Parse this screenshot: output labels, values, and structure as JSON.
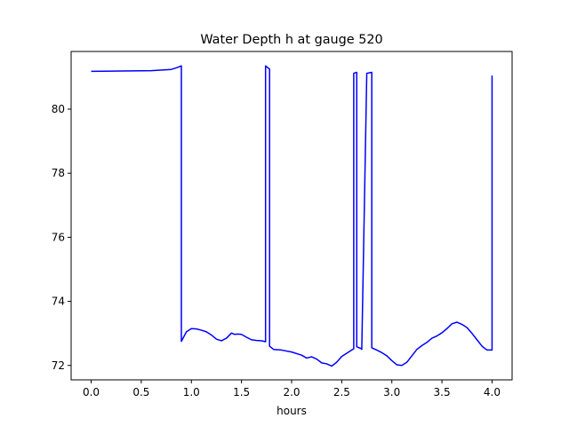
{
  "chart_data": {
    "type": "line",
    "title": "Water Depth h at gauge 520",
    "xlabel": "hours",
    "ylabel": "",
    "xlim": [
      -0.2,
      4.2
    ],
    "ylim": [
      71.55,
      81.8
    ],
    "xticks": [
      0.0,
      0.5,
      1.0,
      1.5,
      2.0,
      2.5,
      3.0,
      3.5,
      4.0
    ],
    "xtick_labels": [
      "0.0",
      "0.5",
      "1.0",
      "1.5",
      "2.0",
      "2.5",
      "3.0",
      "3.5",
      "4.0"
    ],
    "yticks": [
      72,
      74,
      76,
      78,
      80
    ],
    "ytick_labels": [
      "72",
      "74",
      "76",
      "78",
      "80"
    ],
    "grid": false,
    "series": [
      {
        "color": "#0000ff",
        "x": [
          0.0,
          0.3,
          0.6,
          0.8,
          0.86,
          0.9,
          0.9,
          0.95,
          1.0,
          1.05,
          1.1,
          1.15,
          1.2,
          1.25,
          1.3,
          1.35,
          1.4,
          1.43,
          1.46,
          1.5,
          1.55,
          1.6,
          1.65,
          1.7,
          1.74,
          1.74,
          1.78,
          1.78,
          1.82,
          1.9,
          2.0,
          2.1,
          2.15,
          2.2,
          2.25,
          2.3,
          2.35,
          2.4,
          2.45,
          2.5,
          2.55,
          2.6,
          2.62,
          2.62,
          2.65,
          2.65,
          2.7,
          2.7,
          2.75,
          2.75,
          2.8,
          2.8,
          2.85,
          2.9,
          2.95,
          3.0,
          3.05,
          3.1,
          3.15,
          3.2,
          3.25,
          3.3,
          3.35,
          3.4,
          3.45,
          3.5,
          3.55,
          3.6,
          3.65,
          3.7,
          3.75,
          3.8,
          3.85,
          3.9,
          3.95,
          4.0,
          4.0
        ],
        "y": [
          81.18,
          81.19,
          81.2,
          81.24,
          81.3,
          81.35,
          72.75,
          73.05,
          73.15,
          73.14,
          73.1,
          73.05,
          72.95,
          72.82,
          72.77,
          72.85,
          73.01,
          72.97,
          72.98,
          72.97,
          72.88,
          72.8,
          72.78,
          72.77,
          72.74,
          81.35,
          81.25,
          72.6,
          72.5,
          72.48,
          72.42,
          72.32,
          72.23,
          72.27,
          72.2,
          72.08,
          72.05,
          71.98,
          72.1,
          72.28,
          72.38,
          72.48,
          72.52,
          81.12,
          81.15,
          72.58,
          72.52,
          72.5,
          81.12,
          81.12,
          81.15,
          72.55,
          72.48,
          72.4,
          72.3,
          72.15,
          72.02,
          72.0,
          72.1,
          72.3,
          72.5,
          72.62,
          72.72,
          72.85,
          72.92,
          73.02,
          73.15,
          73.3,
          73.35,
          73.28,
          73.18,
          73.0,
          72.8,
          72.6,
          72.48,
          72.48,
          81.05
        ]
      }
    ]
  }
}
